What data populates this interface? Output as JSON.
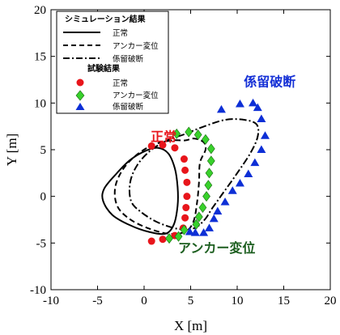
{
  "chart_data": {
    "type": "scatter",
    "xlabel": "X [m]",
    "ylabel": "Y [m]",
    "xlim": [
      -10,
      20
    ],
    "ylim": [
      -10,
      20
    ],
    "xticks": [
      -10,
      -5,
      0,
      5,
      10,
      15,
      20
    ],
    "yticks": [
      -10,
      -5,
      0,
      5,
      10,
      15,
      20
    ],
    "grid": false,
    "legend_position": "top-left",
    "legend": {
      "sim_header": "シミュレーション結果",
      "test_header": "試験結果",
      "entries": [
        "正常",
        "アンカー変位",
        "係留破断"
      ]
    },
    "annotations": [
      {
        "text": "正常",
        "x": 2.1,
        "y": 5.9,
        "color": "#e8151b"
      },
      {
        "text": "アンカー変位",
        "x": 7.8,
        "y": -6.0,
        "color": "#1c5e1f"
      },
      {
        "text": "係留破断",
        "x": 13.5,
        "y": 11.8,
        "color": "#1530d6"
      }
    ],
    "simulation": [
      {
        "name": "正常",
        "style": "solid",
        "points": [
          [
            1.5,
            5.2
          ],
          [
            0.2,
            4.9
          ],
          [
            -1.5,
            3.9
          ],
          [
            -3.0,
            2.4
          ],
          [
            -4.3,
            0.8
          ],
          [
            -4.4,
            -0.5
          ],
          [
            -3.4,
            -2.0
          ],
          [
            -1.5,
            -3.1
          ],
          [
            0.5,
            -3.8
          ],
          [
            2.3,
            -4.0
          ],
          [
            3.2,
            -3.0
          ],
          [
            3.6,
            -1.0
          ],
          [
            3.6,
            1.0
          ],
          [
            3.3,
            3.0
          ],
          [
            2.6,
            4.6
          ],
          [
            1.5,
            5.2
          ]
        ]
      },
      {
        "name": "アンカー変位",
        "style": "dashed",
        "points": [
          [
            3.0,
            6.0
          ],
          [
            1.2,
            5.6
          ],
          [
            -0.6,
            4.6
          ],
          [
            -2.2,
            3.0
          ],
          [
            -3.1,
            1.0
          ],
          [
            -2.9,
            -1.0
          ],
          [
            -1.6,
            -2.4
          ],
          [
            0.4,
            -3.4
          ],
          [
            2.6,
            -4.0
          ],
          [
            4.4,
            -3.8
          ],
          [
            5.3,
            -2.7
          ],
          [
            5.7,
            -0.6
          ],
          [
            5.9,
            1.6
          ],
          [
            6.0,
            3.6
          ],
          [
            6.6,
            5.0
          ],
          [
            6.4,
            5.8
          ],
          [
            5.4,
            6.2
          ],
          [
            4.4,
            6.0
          ],
          [
            3.0,
            6.0
          ]
        ]
      },
      {
        "name": "係留破断",
        "style": "dashdot",
        "points": [
          [
            4.2,
            6.6
          ],
          [
            2.7,
            6.1
          ],
          [
            0.8,
            5.0
          ],
          [
            -0.7,
            3.4
          ],
          [
            -1.5,
            1.5
          ],
          [
            -1.4,
            -0.5
          ],
          [
            -0.3,
            -1.7
          ],
          [
            1.5,
            -2.8
          ],
          [
            3.7,
            -3.5
          ],
          [
            5.4,
            -3.4
          ],
          [
            6.5,
            -2.5
          ],
          [
            7.3,
            -1.3
          ],
          [
            8.3,
            0.1
          ],
          [
            9.8,
            2.2
          ],
          [
            11.4,
            4.6
          ],
          [
            12.2,
            6.4
          ],
          [
            12.1,
            7.7
          ],
          [
            10.8,
            8.2
          ],
          [
            8.7,
            8.2
          ],
          [
            6.2,
            7.4
          ],
          [
            4.2,
            6.6
          ]
        ]
      }
    ],
    "series": [
      {
        "name": "正常",
        "marker": "circle",
        "color": "#e8151b",
        "points": [
          [
            0.8,
            5.4
          ],
          [
            2.0,
            5.5
          ],
          [
            3.3,
            5.2
          ],
          [
            4.3,
            4.0
          ],
          [
            4.4,
            2.8
          ],
          [
            4.6,
            1.5
          ],
          [
            4.6,
            0.0
          ],
          [
            4.5,
            -1.2
          ],
          [
            4.4,
            -2.3
          ],
          [
            4.2,
            -3.4
          ],
          [
            3.3,
            -4.2
          ],
          [
            2.0,
            -4.6
          ],
          [
            0.8,
            -4.8
          ]
        ]
      },
      {
        "name": "アンカー変位",
        "marker": "diamond",
        "color": "#38d12b",
        "points": [
          [
            3.5,
            6.7
          ],
          [
            4.8,
            6.9
          ],
          [
            5.8,
            6.6
          ],
          [
            6.6,
            6.1
          ],
          [
            7.2,
            5.1
          ],
          [
            7.2,
            3.8
          ],
          [
            7.0,
            2.5
          ],
          [
            6.9,
            1.2
          ],
          [
            6.7,
            0.0
          ],
          [
            6.3,
            -1.2
          ],
          [
            5.9,
            -2.2
          ],
          [
            5.6,
            -3.0
          ],
          [
            4.3,
            -3.6
          ],
          [
            3.7,
            -4.3
          ],
          [
            2.7,
            -4.5
          ]
        ]
      },
      {
        "name": "係留破断",
        "marker": "triangle",
        "color": "#0d2fd6",
        "points": [
          [
            8.3,
            9.3
          ],
          [
            10.3,
            9.9
          ],
          [
            11.7,
            10.0
          ],
          [
            12.2,
            9.5
          ],
          [
            12.6,
            8.3
          ],
          [
            13.0,
            6.5
          ],
          [
            12.6,
            5.0
          ],
          [
            11.9,
            3.6
          ],
          [
            11.2,
            2.4
          ],
          [
            10.3,
            1.4
          ],
          [
            9.5,
            0.6
          ],
          [
            8.7,
            -0.6
          ],
          [
            7.9,
            -1.6
          ],
          [
            7.5,
            -2.4
          ],
          [
            7.0,
            -3.4
          ],
          [
            6.4,
            -3.9
          ],
          [
            5.5,
            -3.9
          ],
          [
            4.9,
            -3.8
          ]
        ]
      }
    ]
  }
}
